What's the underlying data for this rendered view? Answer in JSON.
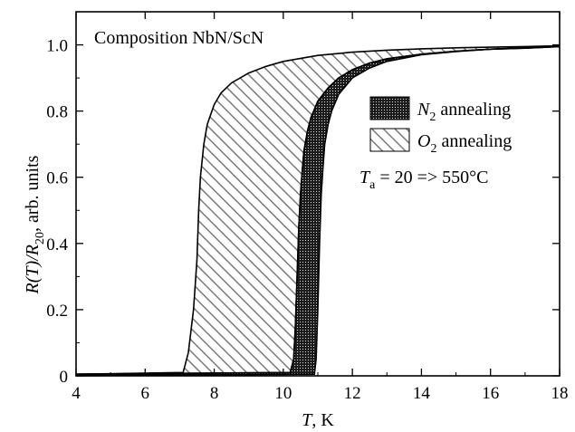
{
  "chart_data": {
    "type": "area",
    "title": "",
    "annotation": "Composition NbN/ScN",
    "xlabel": {
      "var": "T",
      "unit": ", K"
    },
    "ylabel": {
      "prefix": "R(T)/R",
      "sub": "20",
      "suffix": ", arb. units"
    },
    "xlim": [
      4,
      18
    ],
    "ylim": [
      0,
      1.1
    ],
    "xticks": [
      4,
      6,
      8,
      10,
      12,
      14,
      16,
      18
    ],
    "yticks": [
      0,
      0.2,
      0.4,
      0.6,
      0.8,
      1.0
    ],
    "ytick_labels": [
      "0",
      "0.2",
      "0.4",
      "0.6",
      "0.8",
      "1.0"
    ],
    "grid": false,
    "legend_position": "upper-right",
    "series": [
      {
        "name": {
          "base": "O",
          "sub": "2",
          "rest": " annealing"
        },
        "style": "hatched",
        "lower": {
          "x": [
            4.0,
            10.2,
            10.3,
            10.35,
            10.4,
            10.45,
            10.5,
            10.55,
            10.6,
            10.7,
            10.8,
            11.0,
            11.3,
            11.6,
            12.0,
            12.5,
            13.0,
            14.0,
            15.0,
            16.0,
            17.0,
            18.0
          ],
          "y": [
            0.005,
            0.01,
            0.05,
            0.15,
            0.3,
            0.45,
            0.55,
            0.62,
            0.68,
            0.74,
            0.78,
            0.83,
            0.87,
            0.9,
            0.925,
            0.945,
            0.958,
            0.972,
            0.981,
            0.987,
            0.99,
            0.995
          ]
        },
        "upper": {
          "x": [
            4.0,
            7.1,
            7.25,
            7.4,
            7.5,
            7.55,
            7.6,
            7.7,
            7.8,
            8.0,
            8.2,
            8.5,
            9.0,
            9.5,
            10.0,
            11.0,
            12.0,
            13.0,
            14.0,
            15.0,
            16.0,
            17.0,
            18.0
          ],
          "y": [
            0.005,
            0.01,
            0.07,
            0.2,
            0.35,
            0.5,
            0.6,
            0.7,
            0.76,
            0.82,
            0.855,
            0.885,
            0.915,
            0.935,
            0.95,
            0.968,
            0.978,
            0.984,
            0.988,
            0.991,
            0.993,
            0.995,
            0.997
          ]
        }
      },
      {
        "name": {
          "base": "N",
          "sub": "2",
          "rest": " annealing"
        },
        "style": "stippled",
        "lower": {
          "x": [
            4.0,
            10.9,
            10.95,
            11.0,
            11.05,
            11.1,
            11.15,
            11.2,
            11.3,
            11.4,
            11.6,
            12.0,
            12.5,
            13.0,
            14.0,
            15.0,
            16.0,
            17.0,
            18.0
          ],
          "y": [
            0.0,
            0.005,
            0.05,
            0.2,
            0.4,
            0.55,
            0.63,
            0.7,
            0.76,
            0.8,
            0.85,
            0.9,
            0.93,
            0.95,
            0.97,
            0.98,
            0.987,
            0.992,
            0.996
          ]
        },
        "upper": {
          "x": [
            4.0,
            10.2,
            10.3,
            10.35,
            10.4,
            10.45,
            10.5,
            10.55,
            10.6,
            10.7,
            10.8,
            11.0,
            11.3,
            11.6,
            12.0,
            12.5,
            13.0,
            14.0,
            15.0,
            16.0,
            17.0,
            18.0
          ],
          "y": [
            0.005,
            0.01,
            0.05,
            0.15,
            0.3,
            0.45,
            0.55,
            0.62,
            0.68,
            0.74,
            0.78,
            0.83,
            0.87,
            0.9,
            0.925,
            0.945,
            0.958,
            0.972,
            0.981,
            0.987,
            0.99,
            0.995
          ]
        }
      }
    ],
    "anneal_label": {
      "var": "T",
      "sub": "a",
      "text": " = 20 => 550°C"
    }
  }
}
